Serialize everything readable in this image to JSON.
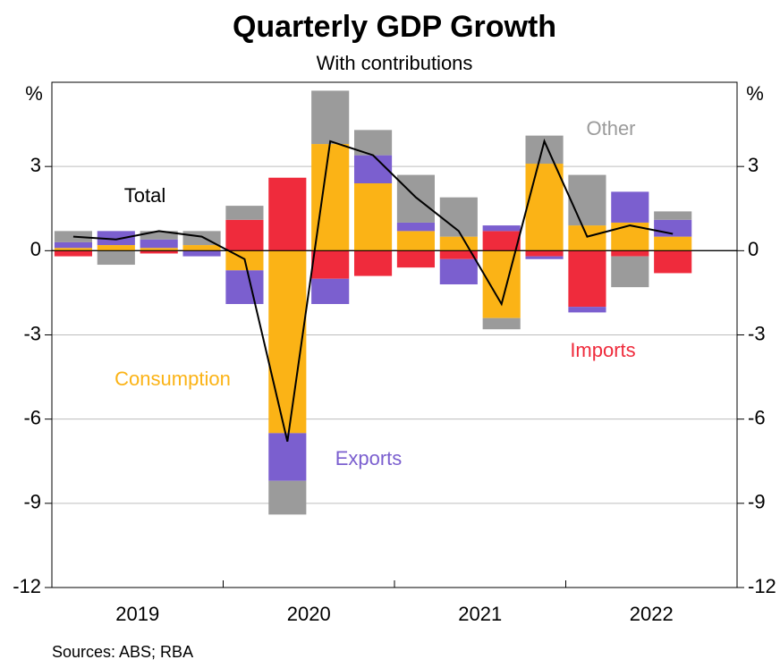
{
  "chart_data": {
    "type": "stacked_bar_line",
    "title": "Quarterly GDP Growth",
    "subtitle": "With contributions",
    "y_unit": "%",
    "source": "Sources: ABS; RBA",
    "categories": [
      null,
      null,
      null,
      null,
      null,
      null,
      null,
      null,
      null,
      null,
      null,
      null,
      null,
      null,
      null,
      null
    ],
    "year_labels": [
      "2019",
      "2020",
      "2021",
      "2022"
    ],
    "ylim": [
      -12,
      6
    ],
    "yticks": [
      -12,
      -9,
      -6,
      -3,
      0,
      3
    ],
    "grid": true,
    "series": [
      {
        "name": "Consumption",
        "color": "#fbb316",
        "values": [
          0.1,
          0.2,
          0.1,
          0.2,
          -0.7,
          -6.5,
          3.8,
          2.4,
          0.7,
          0.5,
          -2.4,
          3.1,
          0.9,
          1.0,
          0.5,
          null
        ]
      },
      {
        "name": "Imports",
        "color": "#ef2b3c",
        "values": [
          -0.2,
          0.0,
          -0.1,
          0.0,
          1.1,
          2.6,
          -1.0,
          -0.9,
          -0.6,
          -0.3,
          0.7,
          -0.2,
          -2.0,
          -0.2,
          -0.8,
          null
        ]
      },
      {
        "name": "Exports",
        "color": "#7b5fcf",
        "values": [
          0.2,
          0.5,
          0.3,
          -0.2,
          -1.2,
          -1.7,
          -0.9,
          1.0,
          0.3,
          -0.9,
          0.2,
          -0.1,
          -0.2,
          1.1,
          0.6,
          null
        ]
      },
      {
        "name": "Other",
        "color": "#9b9b9b",
        "values": [
          0.4,
          -0.5,
          0.3,
          0.5,
          0.5,
          -1.2,
          1.9,
          0.9,
          1.7,
          1.4,
          -0.4,
          1.0,
          1.8,
          -1.1,
          0.3,
          null
        ]
      }
    ],
    "line": {
      "name": "Total",
      "color": "#000000",
      "values": [
        0.5,
        0.4,
        0.7,
        0.5,
        -0.3,
        -6.8,
        3.9,
        3.4,
        1.9,
        0.7,
        -1.9,
        3.9,
        0.5,
        0.9,
        0.6,
        null
      ]
    }
  }
}
